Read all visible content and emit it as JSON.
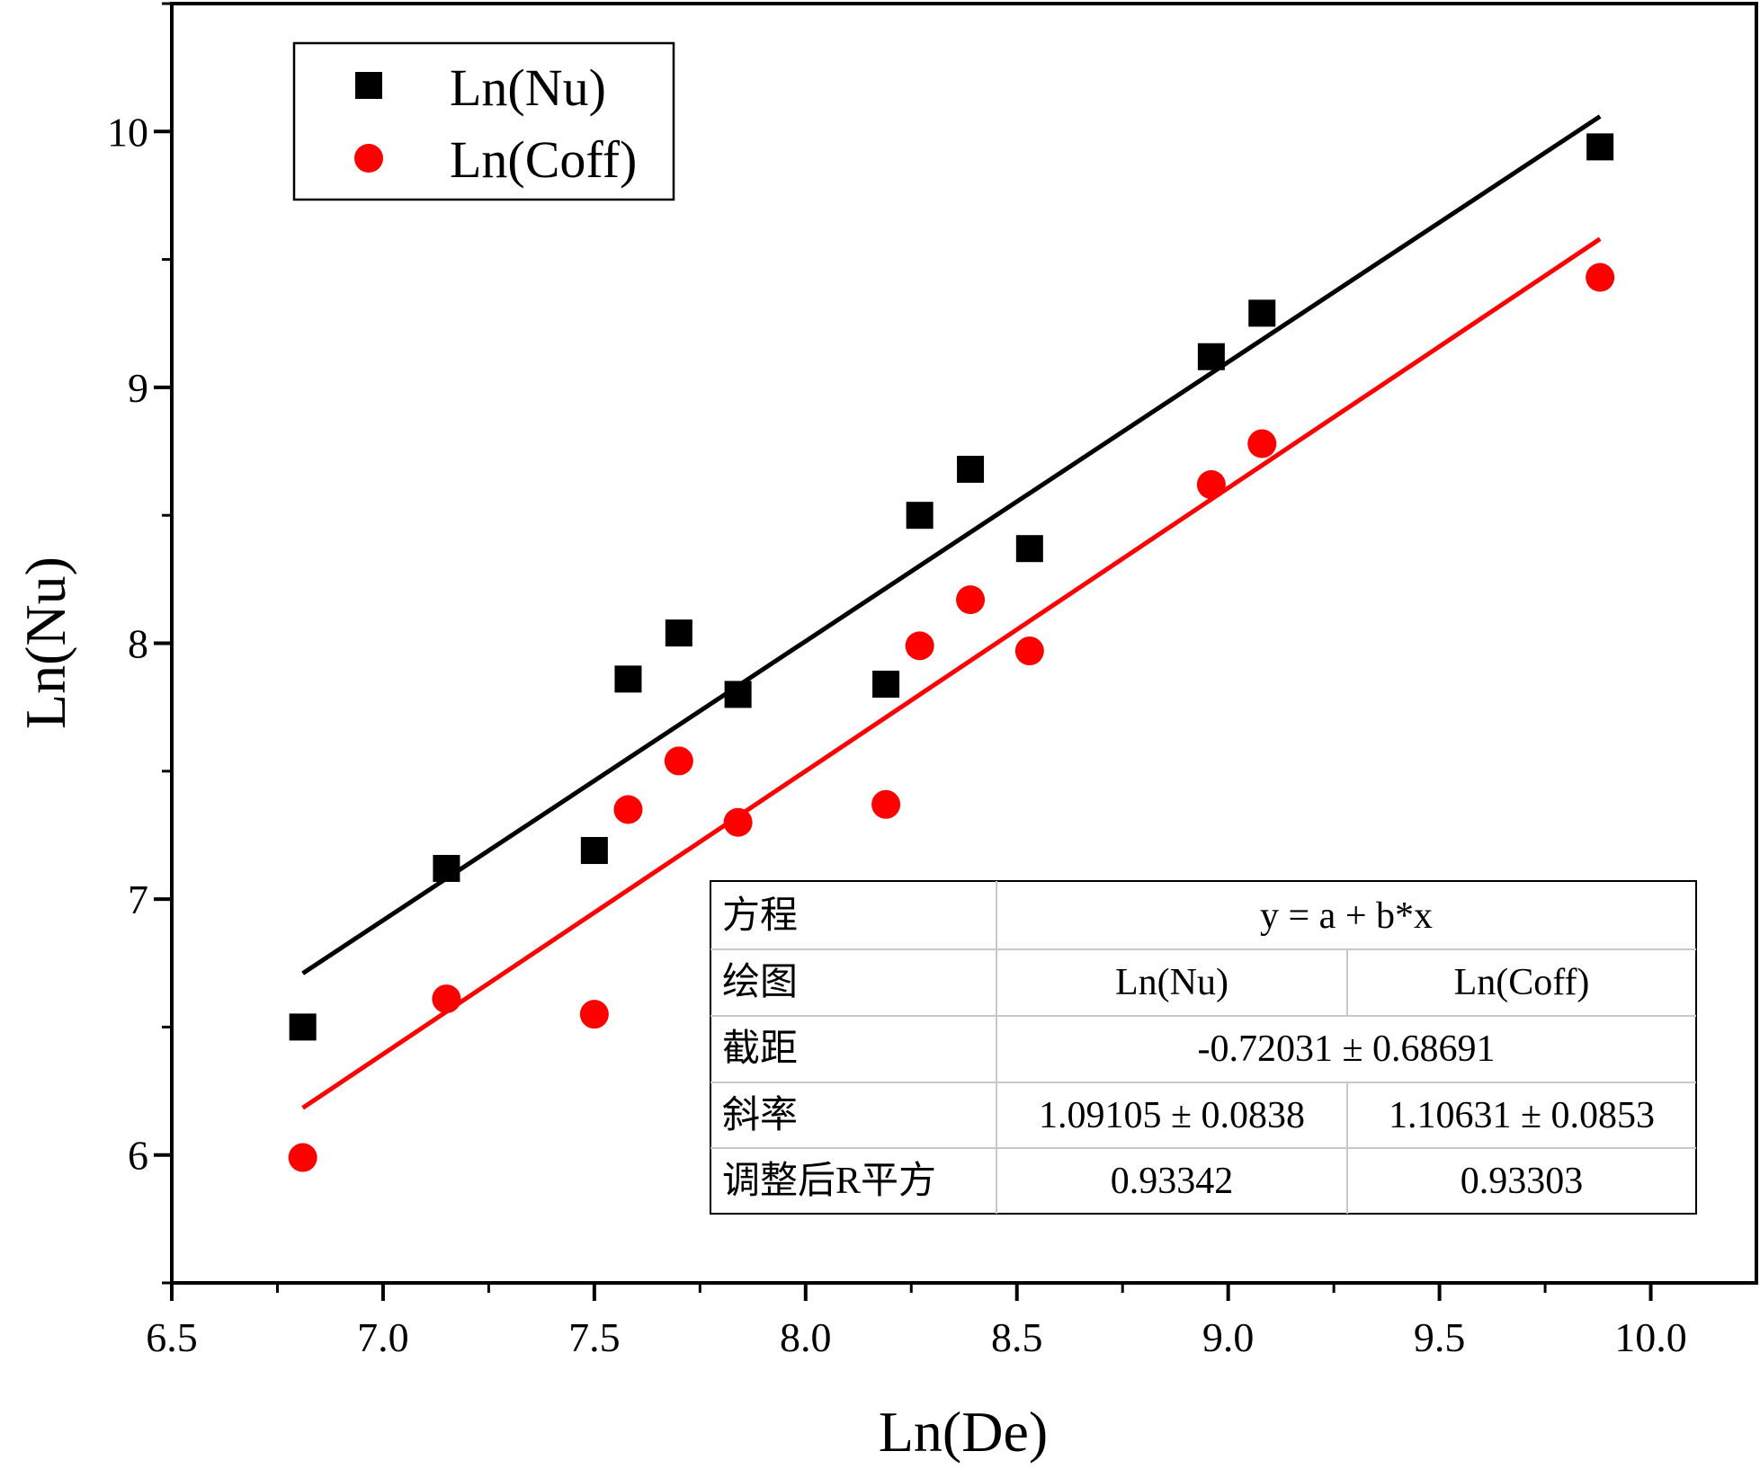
{
  "chart_data": {
    "type": "scatter",
    "xlabel": "Ln(De)",
    "ylabel": "Ln(Nu)",
    "xlim": [
      6.5,
      10.25
    ],
    "ylim": [
      5.5,
      10.5
    ],
    "x_ticks": [
      "6.5",
      "7.0",
      "7.5",
      "8.0",
      "8.5",
      "9.0",
      "9.5",
      "10.0"
    ],
    "y_ticks": [
      "6",
      "7",
      "8",
      "9",
      "10"
    ],
    "grid": false,
    "legend_position": "top-left",
    "series": [
      {
        "name": "Ln(Nu)",
        "marker": "square",
        "color": "#000000",
        "x": [
          6.81,
          7.15,
          7.5,
          7.58,
          7.7,
          7.84,
          8.19,
          8.27,
          8.39,
          8.53,
          8.96,
          9.08,
          9.88
        ],
        "y": [
          6.5,
          7.12,
          7.19,
          7.86,
          8.04,
          7.8,
          7.84,
          8.5,
          8.68,
          8.37,
          9.12,
          9.29,
          9.94
        ],
        "fit": {
          "intercept": -0.72031,
          "slope": 1.09105,
          "x_range": [
            6.81,
            9.88
          ]
        }
      },
      {
        "name": "Ln(Coff)",
        "marker": "circle",
        "color": "#ff0000",
        "x": [
          6.81,
          7.15,
          7.5,
          7.58,
          7.7,
          7.84,
          8.19,
          8.27,
          8.39,
          8.53,
          8.96,
          9.08,
          9.88
        ],
        "y": [
          5.99,
          6.61,
          6.55,
          7.35,
          7.54,
          7.3,
          7.37,
          7.99,
          8.17,
          7.97,
          8.62,
          8.78,
          9.43
        ],
        "fit": {
          "intercept": -1.35,
          "slope": 1.10631,
          "x_range": [
            6.81,
            9.88
          ]
        }
      }
    ],
    "fit_table": {
      "rows": [
        {
          "label": "方程",
          "values": [
            "y = a + b*x"
          ]
        },
        {
          "label": "绘图",
          "values": [
            "Ln(Nu)",
            "Ln(Coff)"
          ]
        },
        {
          "label": "截距",
          "values": [
            "-0.72031 ± 0.68691"
          ]
        },
        {
          "label": "斜率",
          "values": [
            "1.09105 ± 0.0838",
            "1.10631 ± 0.0853"
          ]
        },
        {
          "label": "调整后R平方",
          "values": [
            "0.93342",
            "0.93303"
          ]
        }
      ]
    }
  }
}
